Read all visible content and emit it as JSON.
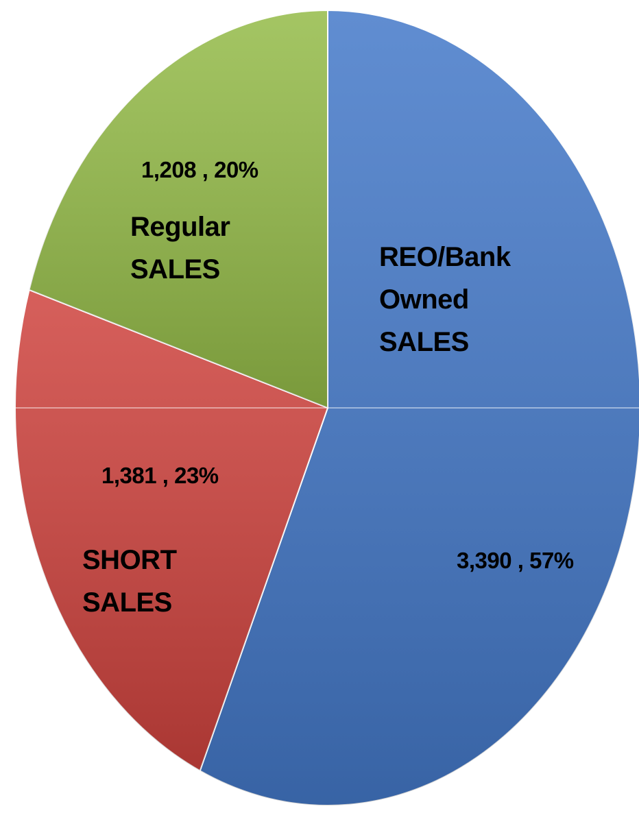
{
  "chart_data": {
    "type": "pie",
    "categories": [
      "REO/Bank Owned SALES",
      "SHORT SALES",
      "Regular SALES"
    ],
    "values": [
      3390,
      1381,
      1208
    ],
    "value_labels": [
      "3,390 , 57%",
      "1,381 , 23%",
      "1,208 , 20%"
    ],
    "colors": [
      "#4479c9",
      "#cf433e",
      "#94bb48"
    ]
  }
}
